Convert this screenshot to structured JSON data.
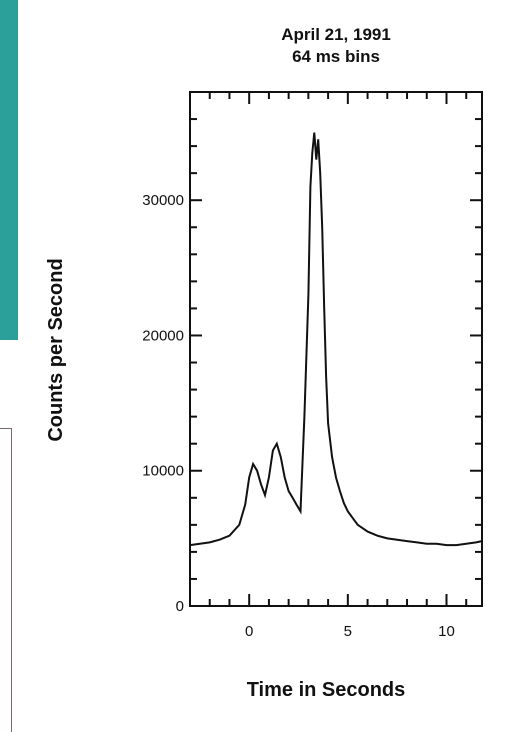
{
  "chart_data": {
    "type": "line",
    "title": "April 21, 1991",
    "subtitle": "64 ms bins",
    "xlabel": "Time in Seconds",
    "ylabel": "Counts per Second",
    "xlim": [
      -3,
      11.8
    ],
    "ylim": [
      0,
      38000
    ],
    "x_ticks": [
      0,
      5,
      10
    ],
    "y_ticks": [
      0,
      10000,
      20000,
      30000
    ],
    "x_tick_labels": [
      "0",
      "5",
      "10"
    ],
    "y_tick_labels": [
      "0",
      "10000",
      "20000",
      "30000"
    ],
    "grid": false,
    "series": [
      {
        "x": [
          -3.0,
          -2.5,
          -2.0,
          -1.5,
          -1.0,
          -0.5,
          -0.2,
          0.0,
          0.2,
          0.4,
          0.6,
          0.8,
          1.0,
          1.2,
          1.4,
          1.6,
          1.8,
          2.0,
          2.2,
          2.4,
          2.6,
          2.8,
          3.0,
          3.1,
          3.2,
          3.3,
          3.4,
          3.5,
          3.6,
          3.7,
          3.8,
          3.9,
          4.0,
          4.2,
          4.4,
          4.6,
          4.8,
          5.0,
          5.5,
          6.0,
          6.5,
          7.0,
          7.5,
          8.0,
          8.5,
          9.0,
          9.5,
          10.0,
          10.5,
          11.0,
          11.5,
          11.8
        ],
        "y": [
          4500,
          4600,
          4700,
          4900,
          5200,
          6000,
          7500,
          9500,
          10500,
          10000,
          9000,
          8200,
          9500,
          11500,
          12000,
          11000,
          9500,
          8500,
          8000,
          7500,
          7000,
          14000,
          23000,
          31000,
          33500,
          35000,
          33000,
          34500,
          32000,
          28000,
          22000,
          17000,
          13500,
          11000,
          9500,
          8500,
          7600,
          7000,
          6000,
          5500,
          5200,
          5000,
          4900,
          4800,
          4700,
          4600,
          4600,
          4500,
          4500,
          4600,
          4700,
          4800
        ]
      }
    ]
  }
}
